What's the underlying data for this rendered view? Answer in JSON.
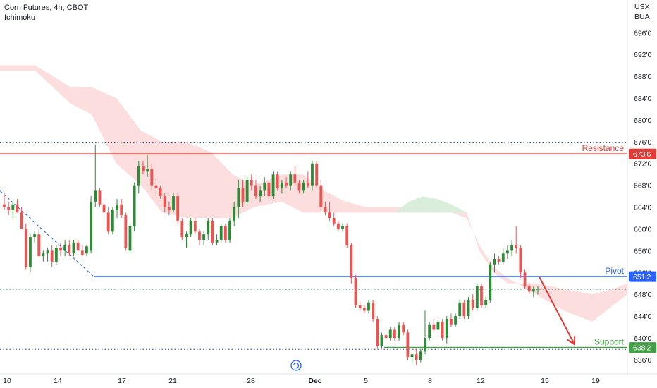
{
  "header": {
    "title": "Corn Futures, 4h, CBOT",
    "indicator": "Ichimoku",
    "currency_line1": "USX",
    "currency_line2": "BUA"
  },
  "colors": {
    "up": "#26a69a",
    "up_dark": "#2e8b35",
    "down": "#ef5350",
    "resistance": "#e53935",
    "pivot": "#2962ff",
    "support": "#43a047",
    "cloud_bear": "#f9d3d1",
    "cloud_bull": "#d6ecd8",
    "grid_dot": "#1e3a8a",
    "arrow": "#e53935"
  },
  "chart_data": {
    "type": "candlestick",
    "title": "Corn Futures, 4h, CBOT",
    "ylim": [
      634.7,
      699.4
    ],
    "y_ticks": [
      "696'0",
      "692'0",
      "688'0",
      "684'0",
      "680'0",
      "676'0",
      "672'0",
      "668'0",
      "664'0",
      "660'0",
      "656'0",
      "652'0",
      "648'0",
      "644'0",
      "640'0",
      "636'0"
    ],
    "y_tick_values": [
      696,
      692,
      688,
      684,
      680,
      676,
      672,
      668,
      664,
      660,
      656,
      652,
      648,
      644,
      640,
      636
    ],
    "x_ticks": [
      "10",
      "14",
      "17",
      "21",
      "28",
      "Dec",
      "5",
      "8",
      "12",
      "15",
      "19"
    ],
    "levels": [
      {
        "name": "Resistance",
        "value": 673.75,
        "label": "673'6"
      },
      {
        "name": "Pivot",
        "value": 651.25,
        "label": "651'2"
      },
      {
        "name": "Support",
        "value": 638.25,
        "label": "638'2"
      }
    ],
    "dotted_levels": [
      675.9,
      648.9,
      637.9
    ],
    "last_price": 648.9,
    "cloud_bear_upper": [
      [
        0,
        690
      ],
      [
        50,
        690
      ],
      [
        100,
        686
      ],
      [
        130,
        686
      ],
      [
        165,
        684
      ],
      [
        200,
        678
      ],
      [
        230,
        676
      ],
      [
        265,
        676
      ],
      [
        300,
        674
      ],
      [
        330,
        670
      ],
      [
        360,
        668
      ],
      [
        400,
        670
      ],
      [
        430,
        670
      ],
      [
        460,
        667
      ],
      [
        490,
        665
      ],
      [
        520,
        664
      ],
      [
        560,
        664
      ],
      [
        600,
        664
      ],
      [
        640,
        663
      ],
      [
        662,
        663
      ],
      [
        680,
        656
      ],
      [
        700,
        652
      ],
      [
        720,
        650
      ],
      [
        760,
        650
      ],
      [
        800,
        649
      ],
      [
        840,
        648
      ],
      [
        870,
        649
      ],
      [
        890,
        650
      ]
    ],
    "cloud_bear_lower": [
      [
        0,
        689
      ],
      [
        50,
        689
      ],
      [
        100,
        683
      ],
      [
        130,
        681
      ],
      [
        165,
        672
      ],
      [
        200,
        668
      ],
      [
        230,
        663
      ],
      [
        265,
        662
      ],
      [
        300,
        662
      ],
      [
        330,
        662
      ],
      [
        360,
        664
      ],
      [
        400,
        665
      ],
      [
        430,
        663
      ],
      [
        460,
        663
      ],
      [
        490,
        663
      ],
      [
        520,
        663
      ],
      [
        560,
        663
      ],
      [
        600,
        663
      ],
      [
        640,
        663
      ],
      [
        662,
        662
      ],
      [
        680,
        657
      ],
      [
        700,
        653
      ],
      [
        720,
        651
      ],
      [
        760,
        648
      ],
      [
        800,
        645
      ],
      [
        840,
        643
      ],
      [
        870,
        646
      ],
      [
        890,
        648
      ]
    ],
    "cloud_bull_upper": [
      [
        560,
        663
      ],
      [
        580,
        665
      ],
      [
        600,
        666
      ],
      [
        620,
        665.5
      ],
      [
        640,
        664.5
      ],
      [
        662,
        663
      ]
    ],
    "cloud_bull_lower": [
      [
        560,
        663
      ],
      [
        580,
        663
      ],
      [
        600,
        663
      ],
      [
        620,
        663
      ],
      [
        640,
        663
      ],
      [
        662,
        663
      ]
    ],
    "candles": [
      [
        664.5,
        666.5,
        663.5,
        664,
        1
      ],
      [
        664,
        665,
        662.5,
        663.5,
        1
      ],
      [
        663.5,
        665,
        662,
        664.5,
        0
      ],
      [
        664.5,
        665.5,
        663,
        663,
        1
      ],
      [
        663,
        664,
        660,
        660,
        1
      ],
      [
        660,
        661,
        652.5,
        653,
        1
      ],
      [
        653,
        659,
        652,
        658.5,
        0
      ],
      [
        658.5,
        659.5,
        657.5,
        659,
        0
      ],
      [
        659,
        660,
        655,
        655,
        1
      ],
      [
        655,
        656,
        654,
        655.5,
        0
      ],
      [
        655.5,
        656.5,
        654,
        656,
        0
      ],
      [
        656,
        657,
        653,
        654,
        1
      ],
      [
        654,
        657,
        653.5,
        656.5,
        0
      ],
      [
        656.5,
        657.5,
        655,
        656,
        1
      ],
      [
        656,
        658,
        655,
        657,
        0
      ],
      [
        657,
        658,
        655,
        655.5,
        1
      ],
      [
        655.5,
        658,
        655,
        657.5,
        0
      ],
      [
        657.5,
        658,
        656,
        656,
        1
      ],
      [
        656,
        657,
        655,
        655.2,
        1
      ],
      [
        655.5,
        657,
        655,
        656.8,
        0
      ],
      [
        656,
        666,
        655.5,
        665,
        0
      ],
      [
        665,
        675.5,
        664,
        667,
        0
      ],
      [
        667,
        667.5,
        664,
        664.5,
        1
      ],
      [
        664.5,
        665,
        662,
        663,
        1
      ],
      [
        663,
        664,
        659,
        659.5,
        1
      ],
      [
        659.5,
        664,
        659,
        663.5,
        0
      ],
      [
        663.5,
        665.5,
        662,
        664.5,
        0
      ],
      [
        664.5,
        665.5,
        662,
        662.5,
        1
      ],
      [
        662.5,
        663,
        656,
        656.5,
        1
      ],
      [
        656,
        661,
        655.5,
        660.5,
        0
      ],
      [
        660.5,
        668.5,
        659.5,
        668,
        0
      ],
      [
        668,
        672.5,
        666.5,
        671.5,
        0
      ],
      [
        671.5,
        672.5,
        670,
        670.5,
        1
      ],
      [
        670.5,
        673.5,
        669.5,
        671,
        0
      ],
      [
        671,
        672,
        667,
        668,
        1
      ],
      [
        668,
        669.5,
        666,
        667.5,
        1
      ],
      [
        667.5,
        668,
        665.5,
        666,
        1
      ],
      [
        666,
        666.5,
        663,
        664,
        1
      ],
      [
        664,
        665,
        662.5,
        663.5,
        1
      ],
      [
        663.5,
        666.5,
        663,
        666,
        0
      ],
      [
        666,
        666.5,
        661,
        661.5,
        1
      ],
      [
        661.5,
        662,
        658,
        658.5,
        1
      ],
      [
        658.5,
        659.5,
        656.5,
        659,
        0
      ],
      [
        659,
        662,
        658.5,
        661.5,
        0
      ],
      [
        661.5,
        662,
        659,
        659.5,
        1
      ],
      [
        659.5,
        660,
        657,
        658,
        1
      ],
      [
        658,
        659.5,
        657,
        659,
        0
      ],
      [
        659,
        662,
        658,
        661.5,
        0
      ],
      [
        661.5,
        662,
        657,
        657.5,
        1
      ],
      [
        657.5,
        659,
        657,
        658,
        0
      ],
      [
        658,
        661,
        657.5,
        660.5,
        0
      ],
      [
        660.5,
        661,
        657.5,
        658,
        1
      ],
      [
        658,
        662,
        657.5,
        661.5,
        0
      ],
      [
        661.5,
        665,
        660.5,
        664,
        0
      ],
      [
        664,
        669,
        662,
        667.5,
        0
      ],
      [
        667.5,
        669,
        664,
        665,
        1
      ],
      [
        665,
        669.5,
        664.5,
        669,
        0
      ],
      [
        669,
        670,
        667,
        668,
        1
      ],
      [
        668,
        669,
        665.5,
        666,
        1
      ],
      [
        666,
        668,
        665,
        667,
        0
      ],
      [
        667,
        669.5,
        666,
        668.5,
        0
      ],
      [
        668.5,
        669,
        665.5,
        666,
        1
      ],
      [
        666,
        670.5,
        665.5,
        670,
        0
      ],
      [
        670,
        670.5,
        667,
        667.5,
        1
      ],
      [
        667.5,
        669,
        666.5,
        668.5,
        0
      ],
      [
        668.5,
        669.5,
        667.5,
        668,
        1
      ],
      [
        668,
        670.5,
        667,
        670,
        0
      ],
      [
        670,
        671.5,
        668,
        668.5,
        1
      ],
      [
        668.5,
        669,
        666.5,
        667,
        1
      ],
      [
        667,
        669,
        666.5,
        668.5,
        0
      ],
      [
        668.5,
        670.5,
        667.5,
        668,
        1
      ],
      [
        668,
        672.5,
        667,
        672,
        0
      ],
      [
        672,
        672.5,
        667.5,
        668,
        1
      ],
      [
        668,
        669,
        663.5,
        664,
        1
      ],
      [
        664,
        665,
        662.5,
        663,
        1
      ],
      [
        663,
        665,
        661.5,
        662,
        1
      ],
      [
        662,
        663,
        660.5,
        661,
        1
      ],
      [
        661,
        661.5,
        659.5,
        660,
        1
      ],
      [
        660,
        661,
        659.5,
        660.5,
        0
      ],
      [
        660.5,
        661,
        656.5,
        657,
        1
      ],
      [
        657,
        657.5,
        650,
        651,
        1
      ],
      [
        651,
        651.5,
        645.5,
        646,
        1
      ],
      [
        646,
        646.5,
        645,
        645.5,
        1
      ],
      [
        645.5,
        646,
        644.5,
        645,
        1
      ],
      [
        645,
        647,
        644.5,
        646.5,
        0
      ],
      [
        646.5,
        647,
        643,
        643.5,
        1
      ],
      [
        643.5,
        644,
        638,
        638.5,
        1
      ],
      [
        638.5,
        641,
        638,
        640.5,
        0
      ],
      [
        640.5,
        641,
        639.5,
        640,
        1
      ],
      [
        640,
        642,
        639.5,
        641.5,
        0
      ],
      [
        641.5,
        642,
        639.5,
        640,
        1
      ],
      [
        640,
        643,
        639.5,
        642.5,
        0
      ],
      [
        642.5,
        643,
        640.5,
        641,
        1
      ],
      [
        641,
        641.5,
        636,
        636.5,
        1
      ],
      [
        636.5,
        637,
        635.5,
        637,
        0
      ],
      [
        637,
        638,
        635,
        636,
        1
      ],
      [
        636,
        638,
        635.5,
        637.5,
        0
      ],
      [
        637.5,
        645,
        637,
        640,
        0
      ],
      [
        640,
        643,
        639.5,
        642.5,
        0
      ],
      [
        642.5,
        643.5,
        641,
        641.5,
        1
      ],
      [
        641.5,
        643.5,
        640.5,
        643,
        0
      ],
      [
        643,
        643.5,
        639.5,
        640,
        1
      ],
      [
        640,
        644,
        639,
        643.5,
        0
      ],
      [
        643.5,
        644.5,
        642,
        642.5,
        1
      ],
      [
        642.5,
        644.5,
        642,
        644,
        0
      ],
      [
        644,
        647,
        643.5,
        646.5,
        0
      ],
      [
        646.5,
        647,
        643.5,
        644,
        1
      ],
      [
        644,
        647.5,
        643.5,
        647,
        0
      ],
      [
        647,
        648,
        645,
        645.5,
        1
      ],
      [
        645.5,
        650,
        645,
        649.5,
        0
      ],
      [
        649.5,
        650,
        645.5,
        646,
        1
      ],
      [
        646,
        647.5,
        645.5,
        647,
        0
      ],
      [
        647,
        654,
        646.5,
        653.5,
        0
      ],
      [
        653.5,
        655.5,
        652,
        654.5,
        0
      ],
      [
        654.5,
        655,
        653.5,
        654,
        1
      ],
      [
        654,
        656.5,
        653.5,
        655.5,
        0
      ],
      [
        655.5,
        657,
        654.5,
        656,
        0
      ],
      [
        656,
        658,
        655,
        657,
        0
      ],
      [
        657,
        660.5,
        655.5,
        656.5,
        1
      ],
      [
        656.5,
        657,
        651,
        652,
        1
      ],
      [
        652,
        652.5,
        649,
        649.5,
        1
      ],
      [
        649.5,
        650,
        648,
        648.5,
        1
      ],
      [
        648.5,
        649.5,
        647.5,
        649,
        0
      ],
      [
        649,
        649.5,
        648,
        648.9,
        0
      ]
    ]
  },
  "annotations": {
    "resistance_label": "Resistance",
    "pivot_label": "Pivot",
    "support_label": "Support",
    "arrow": {
      "from": [
        765,
        651.2
      ],
      "to": [
        815,
        638.8
      ]
    }
  }
}
